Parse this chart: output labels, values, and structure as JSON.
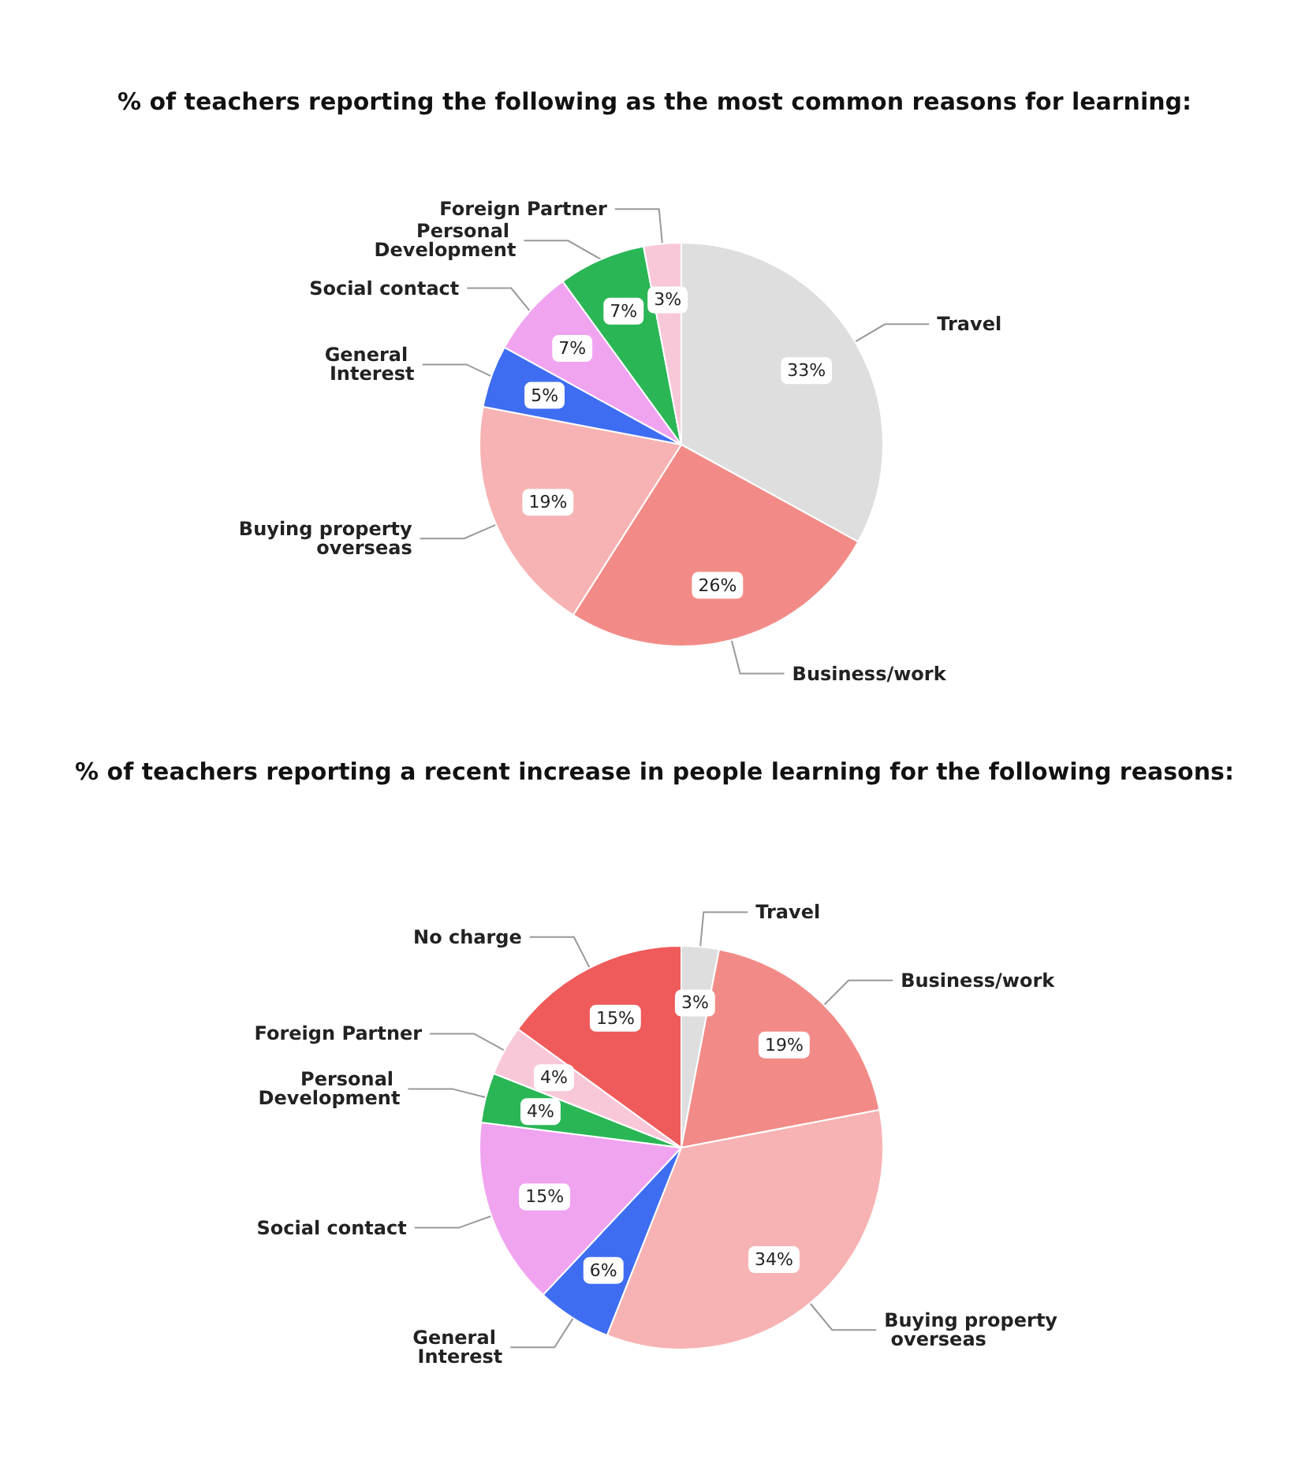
{
  "chart_data": [
    {
      "type": "pie",
      "title": "% of teachers reporting the following as the most common reasons for learning:",
      "categories": [
        "Travel",
        "Business/work",
        "Buying property overseas",
        "General Interest",
        "Social contact",
        "Personal Development",
        "Foreign Partner"
      ],
      "values": [
        33,
        26,
        19,
        5,
        7,
        7,
        3
      ],
      "colors": [
        "#dedede",
        "#f28b87",
        "#f7b3b3",
        "#3f6df2",
        "#f0a4f0",
        "#2bb656",
        "#f8c8d8"
      ],
      "value_labels": [
        "33%",
        "26%",
        "19%",
        "5%",
        "7%",
        "7%",
        "3%"
      ]
    },
    {
      "type": "pie",
      "title": "% of teachers reporting a recent increase in people learning for the following reasons:",
      "categories": [
        "Travel",
        "Business/work",
        "Buying property overseas",
        "General Interest",
        "Social contact",
        "Personal Development",
        "Foreign Partner",
        "No charge"
      ],
      "values": [
        3,
        19,
        34,
        6,
        15,
        4,
        4,
        15
      ],
      "colors": [
        "#dedede",
        "#f28b87",
        "#f7b3b3",
        "#3f6df2",
        "#f0a4f0",
        "#2bb656",
        "#f8c8d8",
        "#ef5a5a"
      ],
      "value_labels": [
        "3%",
        "19%",
        "34%",
        "6%",
        "15%",
        "4%",
        "4%",
        "15%"
      ]
    }
  ]
}
